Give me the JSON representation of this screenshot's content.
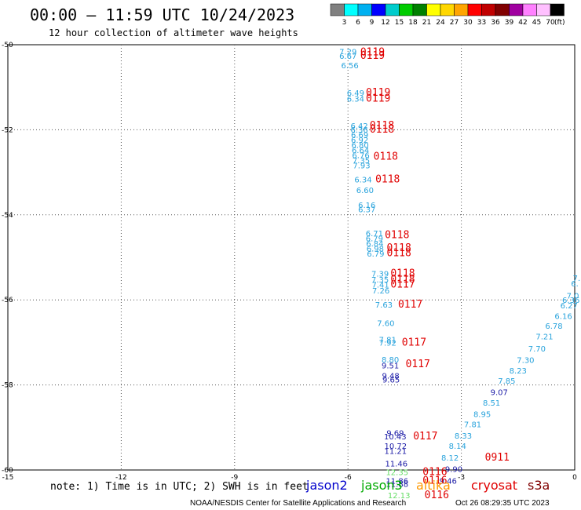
{
  "header": {
    "title": "00:00 – 11:59 UTC 10/24/2023",
    "subtitle": "12 hour collection of altimeter wave heights"
  },
  "scale": {
    "unit": "(ft)",
    "labels": [
      "3",
      "6",
      "9",
      "12",
      "15",
      "18",
      "21",
      "24",
      "27",
      "30",
      "33",
      "36",
      "39",
      "42",
      "45",
      "70"
    ],
    "colors": [
      "#808080",
      "#00ffff",
      "#00b0f0",
      "#0000ff",
      "#00cccc",
      "#00cc00",
      "#008000",
      "#ffff00",
      "#ffd700",
      "#ffa500",
      "#ff0000",
      "#c00000",
      "#800000",
      "#a000a0",
      "#ff80ff",
      "#ffc0ff",
      "#000000"
    ]
  },
  "footer": {
    "note": "note: 1) Time is in UTC; 2) SWH is in feet",
    "credit": "NOAA/NESDIS Center for Satellite Applications and Research",
    "timestamp": "Oct 26 08:29:35 UTC 2023"
  },
  "legend": [
    {
      "name": "jason2",
      "color": "#0000cc"
    },
    {
      "name": "jason3",
      "color": "#00aa00"
    },
    {
      "name": "altika",
      "color": "#ff9900"
    },
    {
      "name": "cryosat",
      "color": "#e00000"
    },
    {
      "name": "s3a",
      "color": "#800000"
    }
  ],
  "colors": {
    "jason3_light": "#29a3dc",
    "jason2": "#1a1aa6",
    "green": "#66dd66",
    "pass": "#e00000",
    "pass_dark": "#800000"
  },
  "chart_data": {
    "type": "scatter",
    "title": "00:00 – 11:59 UTC 10/24/2023",
    "xlim": [
      -15,
      0
    ],
    "ylim": [
      -60,
      -50
    ],
    "x_ticks": [
      "-15",
      "-12",
      "-9",
      "-6",
      "-3",
      "0"
    ],
    "y_ticks": [
      "-50",
      "-52",
      "-54",
      "-56",
      "-58",
      "-60"
    ],
    "grid": true,
    "points": [
      {
        "x": -6.0,
        "y": -50.23,
        "label": "7.29",
        "c": "jason3_light"
      },
      {
        "x": -6.0,
        "y": -50.33,
        "label": "6.67",
        "c": "jason3_light"
      },
      {
        "x": -5.95,
        "y": -50.55,
        "label": "6.56",
        "c": "jason3_light"
      },
      {
        "x": -5.8,
        "y": -51.2,
        "label": "6.49",
        "c": "jason3_light"
      },
      {
        "x": -5.8,
        "y": -51.34,
        "label": "6.34",
        "c": "jason3_light"
      },
      {
        "x": -5.7,
        "y": -51.97,
        "label": "6.42",
        "c": "jason3_light"
      },
      {
        "x": -5.7,
        "y": -52.07,
        "label": "6.36",
        "c": "jason3_light"
      },
      {
        "x": -5.69,
        "y": -52.19,
        "label": "6.69",
        "c": "jason3_light"
      },
      {
        "x": -5.69,
        "y": -52.31,
        "label": "6.92",
        "c": "jason3_light"
      },
      {
        "x": -5.68,
        "y": -52.43,
        "label": "6.80",
        "c": "jason3_light"
      },
      {
        "x": -5.67,
        "y": -52.55,
        "label": "6.64",
        "c": "jason3_light"
      },
      {
        "x": -5.66,
        "y": -52.67,
        "label": "6.76",
        "c": "jason3_light"
      },
      {
        "x": -5.65,
        "y": -52.79,
        "label": "7.35",
        "c": "jason3_light"
      },
      {
        "x": -5.64,
        "y": -52.91,
        "label": "7.93",
        "c": "jason3_light"
      },
      {
        "x": -5.6,
        "y": -53.24,
        "label": "6.34",
        "c": "jason3_light"
      },
      {
        "x": -5.55,
        "y": -53.49,
        "label": "6.60",
        "c": "jason3_light"
      },
      {
        "x": -5.5,
        "y": -53.84,
        "label": "6.16",
        "c": "jason3_light"
      },
      {
        "x": -5.5,
        "y": -53.94,
        "label": "6.37",
        "c": "jason3_light"
      },
      {
        "x": -5.3,
        "y": -54.5,
        "label": "6.71",
        "c": "jason3_light"
      },
      {
        "x": -5.3,
        "y": -54.62,
        "label": "6.79",
        "c": "jason3_light"
      },
      {
        "x": -5.29,
        "y": -54.74,
        "label": "6.84",
        "c": "jason3_light"
      },
      {
        "x": -5.28,
        "y": -54.86,
        "label": "6.98",
        "c": "jason3_light"
      },
      {
        "x": -5.27,
        "y": -54.98,
        "label": "6.79",
        "c": "jason3_light"
      },
      {
        "x": -5.15,
        "y": -55.45,
        "label": "7.39",
        "c": "jason3_light"
      },
      {
        "x": -5.15,
        "y": -55.59,
        "label": "7.35",
        "c": "jason3_light"
      },
      {
        "x": -5.14,
        "y": -55.71,
        "label": "7.41",
        "c": "jason3_light"
      },
      {
        "x": -5.13,
        "y": -55.85,
        "label": "7.26",
        "c": "jason3_light"
      },
      {
        "x": -5.05,
        "y": -56.18,
        "label": "7.63",
        "c": "jason3_light"
      },
      {
        "x": -5.0,
        "y": -56.61,
        "label": "7.60",
        "c": "jason3_light"
      },
      {
        "x": -4.95,
        "y": -57.0,
        "label": "7.81",
        "c": "jason3_light"
      },
      {
        "x": -4.95,
        "y": -57.08,
        "label": "7.92",
        "c": "jason3_light"
      },
      {
        "x": -4.88,
        "y": -57.47,
        "label": "8.80",
        "c": "jason3_light"
      },
      {
        "x": -4.88,
        "y": -57.61,
        "label": "9.51",
        "c": "jason2"
      },
      {
        "x": -4.87,
        "y": -57.85,
        "label": "9.48",
        "c": "jason2"
      },
      {
        "x": -4.86,
        "y": -57.94,
        "label": "9.65",
        "c": "jason2"
      },
      {
        "x": -4.75,
        "y": -59.2,
        "label": "9.69",
        "c": "jason2"
      },
      {
        "x": -4.75,
        "y": -59.28,
        "label": "10.43",
        "c": "jason2"
      },
      {
        "x": -4.74,
        "y": -59.5,
        "label": "10.72",
        "c": "jason2"
      },
      {
        "x": -4.74,
        "y": -59.62,
        "label": "11.21",
        "c": "jason2"
      },
      {
        "x": -4.72,
        "y": -59.92,
        "label": "11.46",
        "c": "jason2"
      },
      {
        "x": -4.7,
        "y": -60.12,
        "label": "12.35",
        "c": "green"
      },
      {
        "x": -4.7,
        "y": -60.32,
        "label": "11.86",
        "c": "jason2"
      },
      {
        "x": -4.7,
        "y": -60.4,
        "label": "11.88",
        "c": "jason2"
      },
      {
        "x": -4.65,
        "y": -60.66,
        "label": "12.13",
        "c": "green"
      },
      {
        "x": 0.05,
        "y": -55.55,
        "label": "7.",
        "c": "jason3_light"
      },
      {
        "x": 0.0,
        "y": -55.68,
        "label": "6.",
        "c": "jason3_light"
      },
      {
        "x": -0.05,
        "y": -55.97,
        "label": "7.0",
        "c": "jason3_light"
      },
      {
        "x": -0.1,
        "y": -56.07,
        "label": "6.36",
        "c": "jason3_light"
      },
      {
        "x": -0.15,
        "y": -56.2,
        "label": "6.27",
        "c": "jason3_light"
      },
      {
        "x": -0.3,
        "y": -56.45,
        "label": "6.16",
        "c": "jason3_light"
      },
      {
        "x": -0.55,
        "y": -56.68,
        "label": "6.78",
        "c": "jason3_light"
      },
      {
        "x": -0.8,
        "y": -56.93,
        "label": "7.21",
        "c": "jason3_light"
      },
      {
        "x": -1.0,
        "y": -57.21,
        "label": "7.70",
        "c": "jason3_light"
      },
      {
        "x": -1.3,
        "y": -57.48,
        "label": "7.30",
        "c": "jason3_light"
      },
      {
        "x": -1.5,
        "y": -57.73,
        "label": "8.23",
        "c": "jason3_light"
      },
      {
        "x": -1.8,
        "y": -57.97,
        "label": "7.85",
        "c": "jason3_light"
      },
      {
        "x": -2.0,
        "y": -58.24,
        "label": "9.07",
        "c": "jason2"
      },
      {
        "x": -2.2,
        "y": -58.49,
        "label": "8.51",
        "c": "jason3_light"
      },
      {
        "x": -2.45,
        "y": -58.75,
        "label": "8.95",
        "c": "jason3_light"
      },
      {
        "x": -2.7,
        "y": -58.99,
        "label": "7.81",
        "c": "jason3_light"
      },
      {
        "x": -2.95,
        "y": -59.26,
        "label": "8.33",
        "c": "jason3_light"
      },
      {
        "x": -3.1,
        "y": -59.5,
        "label": "8.14",
        "c": "jason3_light"
      },
      {
        "x": -3.3,
        "y": -59.78,
        "label": "8.12",
        "c": "jason3_light"
      },
      {
        "x": -3.2,
        "y": -60.05,
        "label": "9.90",
        "c": "jason2"
      },
      {
        "x": -3.35,
        "y": -60.32,
        "label": "9.46",
        "c": "jason2"
      }
    ],
    "pass_labels": [
      {
        "x": -5.35,
        "y": -50.25,
        "label": "0119",
        "c": "pass"
      },
      {
        "x": -5.35,
        "y": -50.33,
        "label": "0119",
        "c": "pass"
      },
      {
        "x": -5.2,
        "y": -51.2,
        "label": "0119",
        "c": "pass"
      },
      {
        "x": -5.2,
        "y": -51.34,
        "label": "0119",
        "c": "pass"
      },
      {
        "x": -5.1,
        "y": -51.97,
        "label": "0118",
        "c": "pass"
      },
      {
        "x": -5.1,
        "y": -52.07,
        "label": "0118",
        "c": "pass"
      },
      {
        "x": -5.0,
        "y": -52.7,
        "label": "0118",
        "c": "pass"
      },
      {
        "x": -4.95,
        "y": -53.24,
        "label": "0118",
        "c": "pass"
      },
      {
        "x": -4.7,
        "y": -54.55,
        "label": "0118",
        "c": "pass"
      },
      {
        "x": -4.65,
        "y": -54.85,
        "label": "0118",
        "c": "pass"
      },
      {
        "x": -4.65,
        "y": -54.97,
        "label": "0118",
        "c": "pass"
      },
      {
        "x": -4.55,
        "y": -55.45,
        "label": "0118",
        "c": "pass"
      },
      {
        "x": -4.55,
        "y": -55.59,
        "label": "0118",
        "c": "pass"
      },
      {
        "x": -4.55,
        "y": -55.71,
        "label": "0117",
        "c": "pass"
      },
      {
        "x": -4.35,
        "y": -56.18,
        "label": "0117",
        "c": "pass"
      },
      {
        "x": -4.25,
        "y": -57.08,
        "label": "0117",
        "c": "pass"
      },
      {
        "x": -4.15,
        "y": -57.58,
        "label": "0117",
        "c": "pass"
      },
      {
        "x": -3.95,
        "y": -59.28,
        "label": "0117",
        "c": "pass"
      },
      {
        "x": -3.7,
        "y": -60.12,
        "label": "0116",
        "c": "pass"
      },
      {
        "x": -3.7,
        "y": -60.32,
        "label": "0116",
        "c": "pass"
      },
      {
        "x": -3.65,
        "y": -60.66,
        "label": "0116",
        "c": "pass"
      },
      {
        "x": -2.05,
        "y": -59.78,
        "label": "0911",
        "c": "pass_dark"
      }
    ]
  }
}
